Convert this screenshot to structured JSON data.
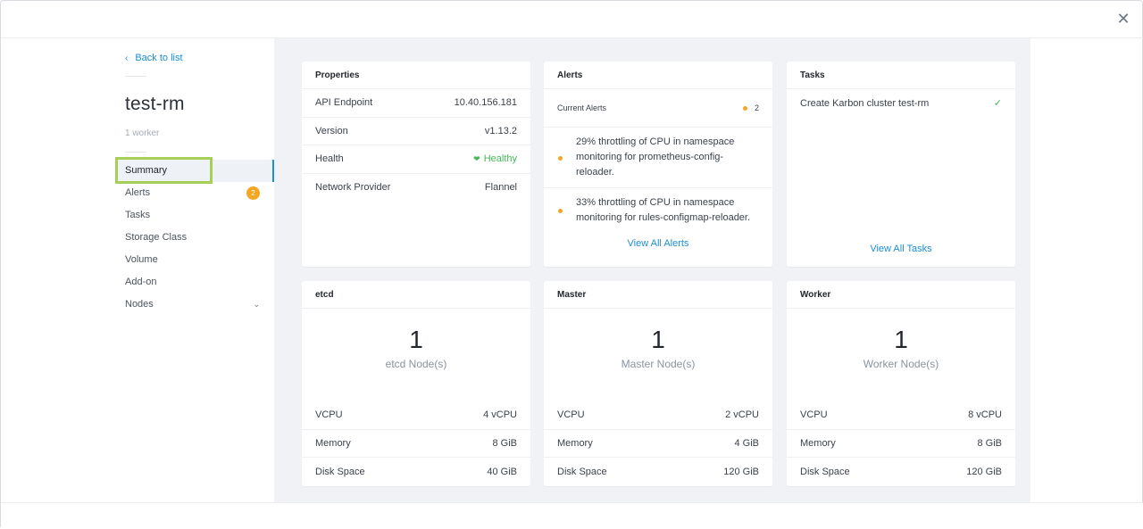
{
  "sidebar": {
    "back_label": "Back to list",
    "cluster_name": "test-rm",
    "worker_count": "1 worker",
    "items": [
      {
        "label": "Summary"
      },
      {
        "label": "Alerts",
        "badge": "2"
      },
      {
        "label": "Tasks"
      },
      {
        "label": "Storage Class"
      },
      {
        "label": "Volume"
      },
      {
        "label": "Add-on"
      },
      {
        "label": "Nodes"
      }
    ]
  },
  "properties": {
    "title": "Properties",
    "rows": [
      {
        "label": "API Endpoint",
        "value": "10.40.156.181"
      },
      {
        "label": "Version",
        "value": "v1.13.2"
      },
      {
        "label": "Health",
        "value": "Healthy"
      },
      {
        "label": "Network Provider",
        "value": "Flannel"
      }
    ]
  },
  "alerts": {
    "title": "Alerts",
    "current_label": "Current Alerts",
    "count": "2",
    "items": [
      "29% throttling of CPU in namespace monitoring for prometheus-config-reloader.",
      "33% throttling of CPU in namespace monitoring for rules-configmap-reloader."
    ],
    "view_all": "View All Alerts"
  },
  "tasks": {
    "title": "Tasks",
    "items": [
      {
        "label": "Create Karbon cluster test-rm"
      }
    ],
    "view_all": "View All Tasks"
  },
  "nodes": [
    {
      "title": "etcd",
      "count": "1",
      "label": "etcd Node(s)",
      "rows": [
        {
          "label": "VCPU",
          "value": "4 vCPU"
        },
        {
          "label": "Memory",
          "value": "8 GiB"
        },
        {
          "label": "Disk Space",
          "value": "40 GiB"
        }
      ]
    },
    {
      "title": "Master",
      "count": "1",
      "label": "Master Node(s)",
      "rows": [
        {
          "label": "VCPU",
          "value": "2 vCPU"
        },
        {
          "label": "Memory",
          "value": "4 GiB"
        },
        {
          "label": "Disk Space",
          "value": "120 GiB"
        }
      ]
    },
    {
      "title": "Worker",
      "count": "1",
      "label": "Worker Node(s)",
      "rows": [
        {
          "label": "VCPU",
          "value": "8 vCPU"
        },
        {
          "label": "Memory",
          "value": "8 GiB"
        },
        {
          "label": "Disk Space",
          "value": "120 GiB"
        }
      ]
    }
  ],
  "colors": {
    "accent": "#1b8fd8",
    "healthy": "#46b85a",
    "warning": "#f5a623",
    "highlight": "#a6cf57"
  }
}
